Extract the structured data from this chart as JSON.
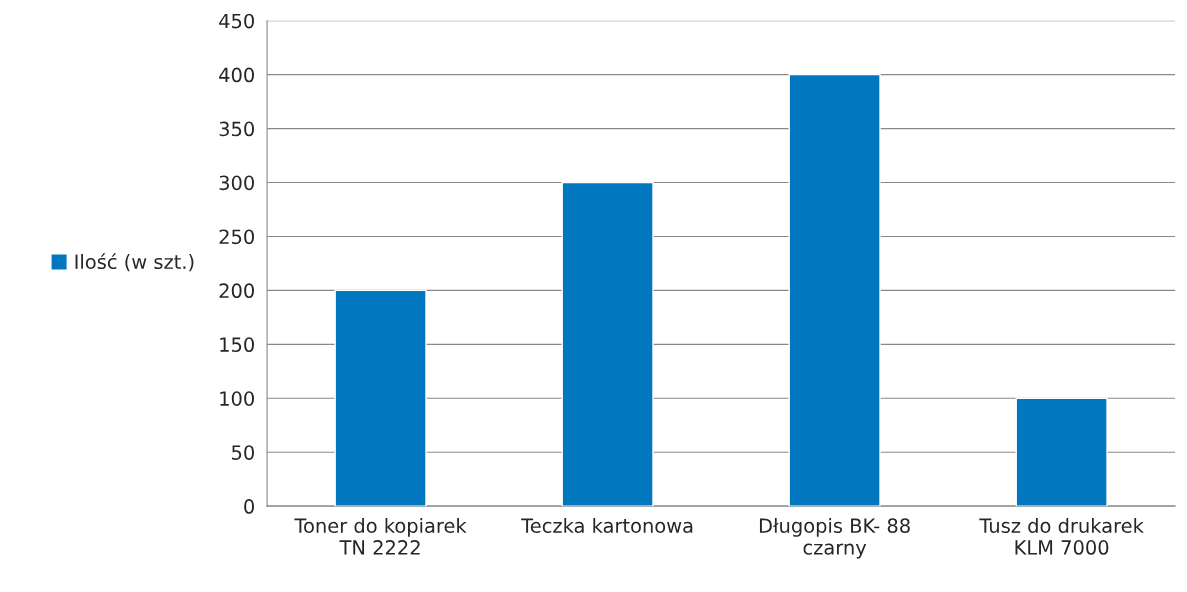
{
  "chart_data": {
    "type": "bar",
    "categories": [
      "Toner do kopiarek\nTN 2222",
      "Teczka kartonowa",
      "Długopis BK- 88\nczarny",
      "Tusz do drukarek\nKLM 7000"
    ],
    "series": [
      {
        "name": "Ilość (w szt.)",
        "color": "#0177bf",
        "values": [
          200,
          300,
          400,
          100
        ]
      }
    ],
    "ylim": [
      0,
      450
    ],
    "yticks": [
      0,
      50,
      100,
      150,
      200,
      250,
      300,
      350,
      400,
      450
    ],
    "grid": "y",
    "legend": "left"
  }
}
